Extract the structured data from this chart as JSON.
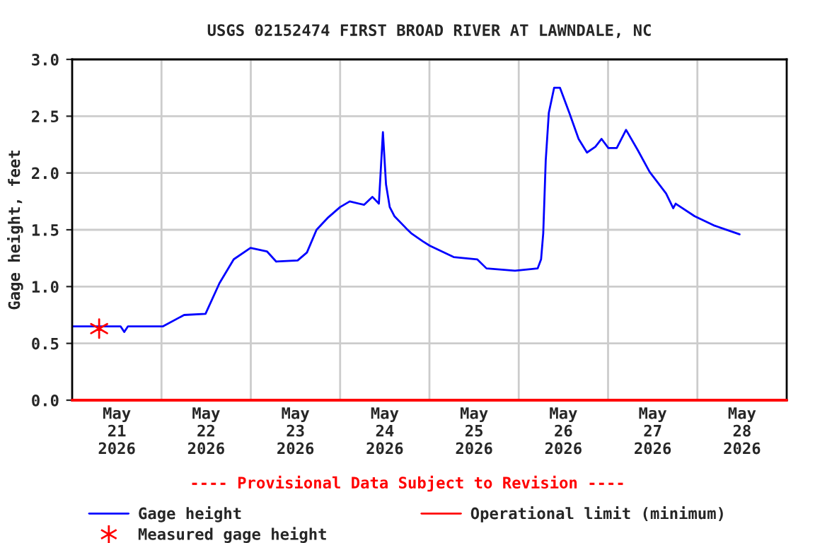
{
  "chart_data": {
    "type": "line",
    "title": "USGS 02152474 FIRST BROAD RIVER AT LAWNDALE, NC",
    "ylabel": "Gage height, feet",
    "annotations": [
      "---- Provisional Data Subject to Revision ----"
    ],
    "xlim": [
      "2026-05-21T00:00",
      "2026-05-29T00:00"
    ],
    "xticks": [
      {
        "value": "2026-05-21T12:00",
        "label": "May\n21\n2026"
      },
      {
        "value": "2026-05-22T12:00",
        "label": "May\n22\n2026"
      },
      {
        "value": "2026-05-23T12:00",
        "label": "May\n23\n2026"
      },
      {
        "value": "2026-05-24T12:00",
        "label": "May\n24\n2026"
      },
      {
        "value": "2026-05-25T12:00",
        "label": "May\n25\n2026"
      },
      {
        "value": "2026-05-26T12:00",
        "label": "May\n26\n2026"
      },
      {
        "value": "2026-05-27T12:00",
        "label": "May\n27\n2026"
      },
      {
        "value": "2026-05-28T12:00",
        "label": "May\n28\n2026"
      },
      {
        "value": "2026-05-22T00:00",
        "label": null
      },
      {
        "value": "2026-05-23T00:00",
        "label": null
      },
      {
        "value": "2026-05-24T00:00",
        "label": null
      },
      {
        "value": "2026-05-25T00:00",
        "label": null
      },
      {
        "value": "2026-05-26T00:00",
        "label": null
      },
      {
        "value": "2026-05-27T00:00",
        "label": null
      },
      {
        "value": "2026-05-28T00:00",
        "label": null
      }
    ],
    "ylim": [
      0,
      3.0
    ],
    "yticks": [
      {
        "value": 0,
        "label": "0.0"
      },
      {
        "value": 0.5,
        "label": "0.5"
      },
      {
        "value": 1.0,
        "label": "1.0"
      },
      {
        "value": 1.5,
        "label": "1.5"
      },
      {
        "value": 2.0,
        "label": "2.0"
      },
      {
        "value": 2.5,
        "label": "2.5"
      },
      {
        "value": 3.0,
        "label": "3.0"
      }
    ],
    "grid": true,
    "legend": "bottom",
    "ref_lines": [
      {
        "axis": "y",
        "value": 0,
        "label": "Operational limit (minimum)",
        "color": "#ff0000",
        "line_style": "solid"
      }
    ],
    "series": [
      {
        "name": "Gage height",
        "color": "#0000ff",
        "marker": "none",
        "x": [
          "2026-05-21T00:15",
          "2026-05-21T13:00",
          "2026-05-21T14:00",
          "2026-05-21T15:00",
          "2026-05-22T00:25",
          "2026-05-22T06:05",
          "2026-05-22T11:50",
          "2026-05-22T15:35",
          "2026-05-22T19:25",
          "2026-05-22T23:55",
          "2026-05-23T04:20",
          "2026-05-23T06:50",
          "2026-05-23T12:35",
          "2026-05-23T15:05",
          "2026-05-23T17:40",
          "2026-05-23T20:50",
          "2026-05-24T00:00",
          "2026-05-24T02:35",
          "2026-05-24T06:25",
          "2026-05-24T08:40",
          "2026-05-24T10:25",
          "2026-05-24T11:30",
          "2026-05-24T12:20",
          "2026-05-24T13:20",
          "2026-05-24T14:35",
          "2026-05-24T17:50",
          "2026-05-24T19:05",
          "2026-05-24T22:10",
          "2026-05-25T00:05",
          "2026-05-25T06:30",
          "2026-05-25T12:50",
          "2026-05-25T15:20",
          "2026-05-25T23:00",
          "2026-05-26T05:05",
          "2026-05-26T06:00",
          "2026-05-26T06:35",
          "2026-05-26T07:15",
          "2026-05-26T08:05",
          "2026-05-26T09:30",
          "2026-05-26T11:05",
          "2026-05-26T13:35",
          "2026-05-26T16:05",
          "2026-05-26T18:20",
          "2026-05-26T20:35",
          "2026-05-26T22:15",
          "2026-05-27T00:05",
          "2026-05-27T02:20",
          "2026-05-27T04:50",
          "2026-05-27T08:00",
          "2026-05-27T11:10",
          "2026-05-27T15:35",
          "2026-05-27T17:30",
          "2026-05-27T18:10",
          "2026-05-27T23:15",
          "2026-05-28T04:20",
          "2026-05-28T11:20"
        ],
        "values": [
          0.65,
          0.65,
          0.6,
          0.65,
          0.65,
          0.75,
          0.76,
          1.03,
          1.24,
          1.34,
          1.31,
          1.22,
          1.23,
          1.3,
          1.5,
          1.61,
          1.7,
          1.75,
          1.72,
          1.79,
          1.73,
          2.36,
          1.9,
          1.7,
          1.62,
          1.51,
          1.47,
          1.4,
          1.36,
          1.26,
          1.24,
          1.16,
          1.14,
          1.16,
          1.24,
          1.47,
          2.11,
          2.53,
          2.75,
          2.75,
          2.53,
          2.3,
          2.18,
          2.23,
          2.3,
          2.22,
          2.22,
          2.38,
          2.2,
          2.01,
          1.82,
          1.69,
          1.73,
          1.62,
          1.54,
          1.46
        ]
      },
      {
        "name": "Measured gage height",
        "type": "scatter",
        "color": "#ff0000",
        "marker": "cross",
        "x": [
          "2026-05-21T07:15"
        ],
        "values": [
          0.63
        ]
      }
    ]
  }
}
